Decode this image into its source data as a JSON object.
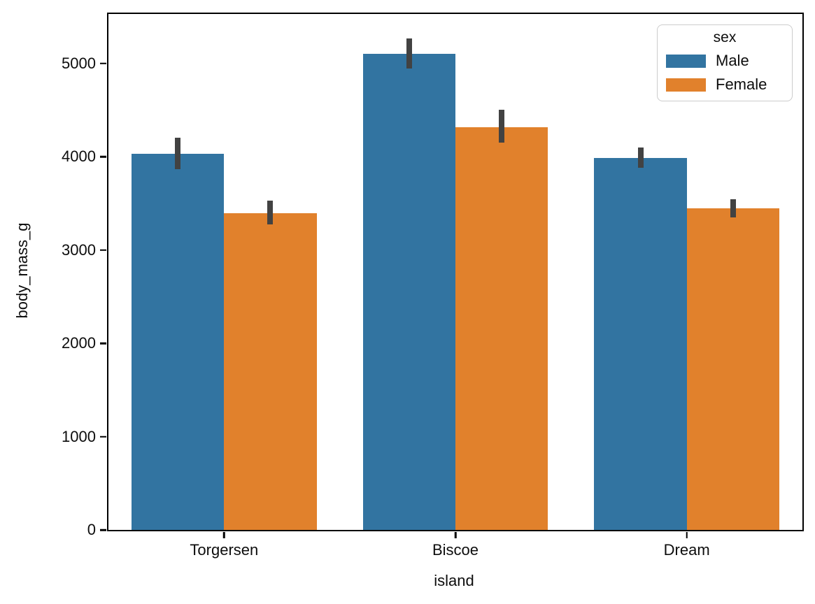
{
  "chart_data": {
    "type": "bar",
    "title": "",
    "xlabel": "island",
    "ylabel": "body_mass_g",
    "categories": [
      "Torgersen",
      "Biscoe",
      "Dream"
    ],
    "series": [
      {
        "name": "Male",
        "color": "#3274a1",
        "values": [
          4034,
          5105,
          3987
        ],
        "ci": [
          [
            3870,
            4200
          ],
          [
            4945,
            5270
          ],
          [
            3880,
            4100
          ]
        ]
      },
      {
        "name": "Female",
        "color": "#e1812c",
        "values": [
          3395,
          4319,
          3446
        ],
        "ci": [
          [
            3275,
            3530
          ],
          [
            4150,
            4500
          ],
          [
            3350,
            3545
          ]
        ]
      }
    ],
    "legend": {
      "title": "sex",
      "position": "upper right"
    },
    "ylim": [
      0,
      5530
    ],
    "yticks": [
      0,
      1000,
      2000,
      3000,
      4000,
      5000
    ],
    "grid": false,
    "bar_group_width": 0.8,
    "error_bar_color": "#424242",
    "spine_color": "#000000",
    "background_color": "#ffffff"
  }
}
